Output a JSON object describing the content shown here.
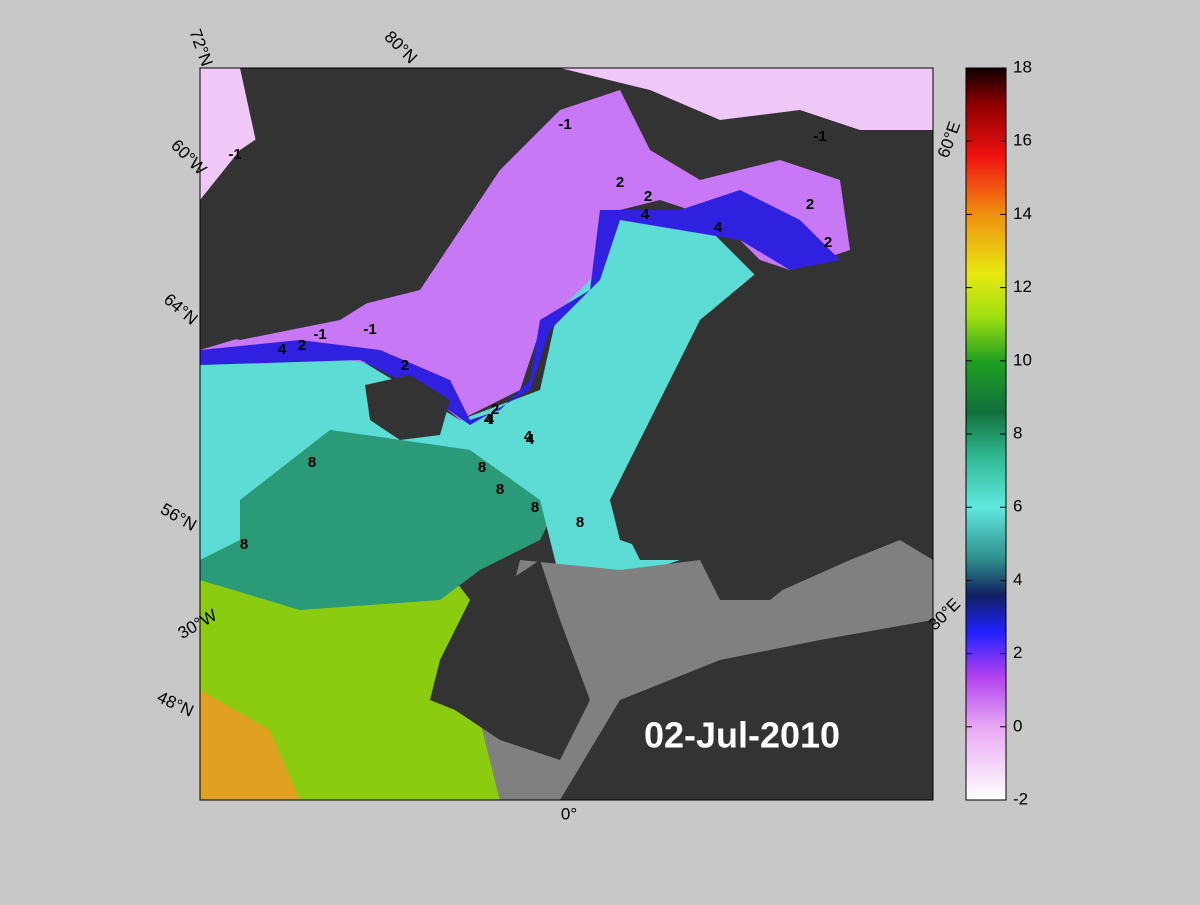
{
  "map": {
    "date": "02-Jul-2010",
    "graticule_labels": [
      "72°N",
      "80°N",
      "60°W",
      "64°N",
      "56°N",
      "30°W",
      "48°N",
      "0°",
      "60°E",
      "30°E"
    ],
    "contour_labels": [
      "-1",
      "-1",
      "-1",
      "-1",
      "2",
      "2",
      "2",
      "2",
      "4",
      "4",
      "4",
      "4",
      "4",
      "2",
      "2",
      "-1",
      "2",
      "4",
      "4",
      "8",
      "8",
      "8",
      "8",
      "8",
      "8"
    ]
  },
  "colorbar": {
    "lim": [
      -2,
      18
    ],
    "ticks": [
      -2,
      0,
      2,
      4,
      6,
      8,
      10,
      12,
      14,
      16,
      18
    ]
  }
}
